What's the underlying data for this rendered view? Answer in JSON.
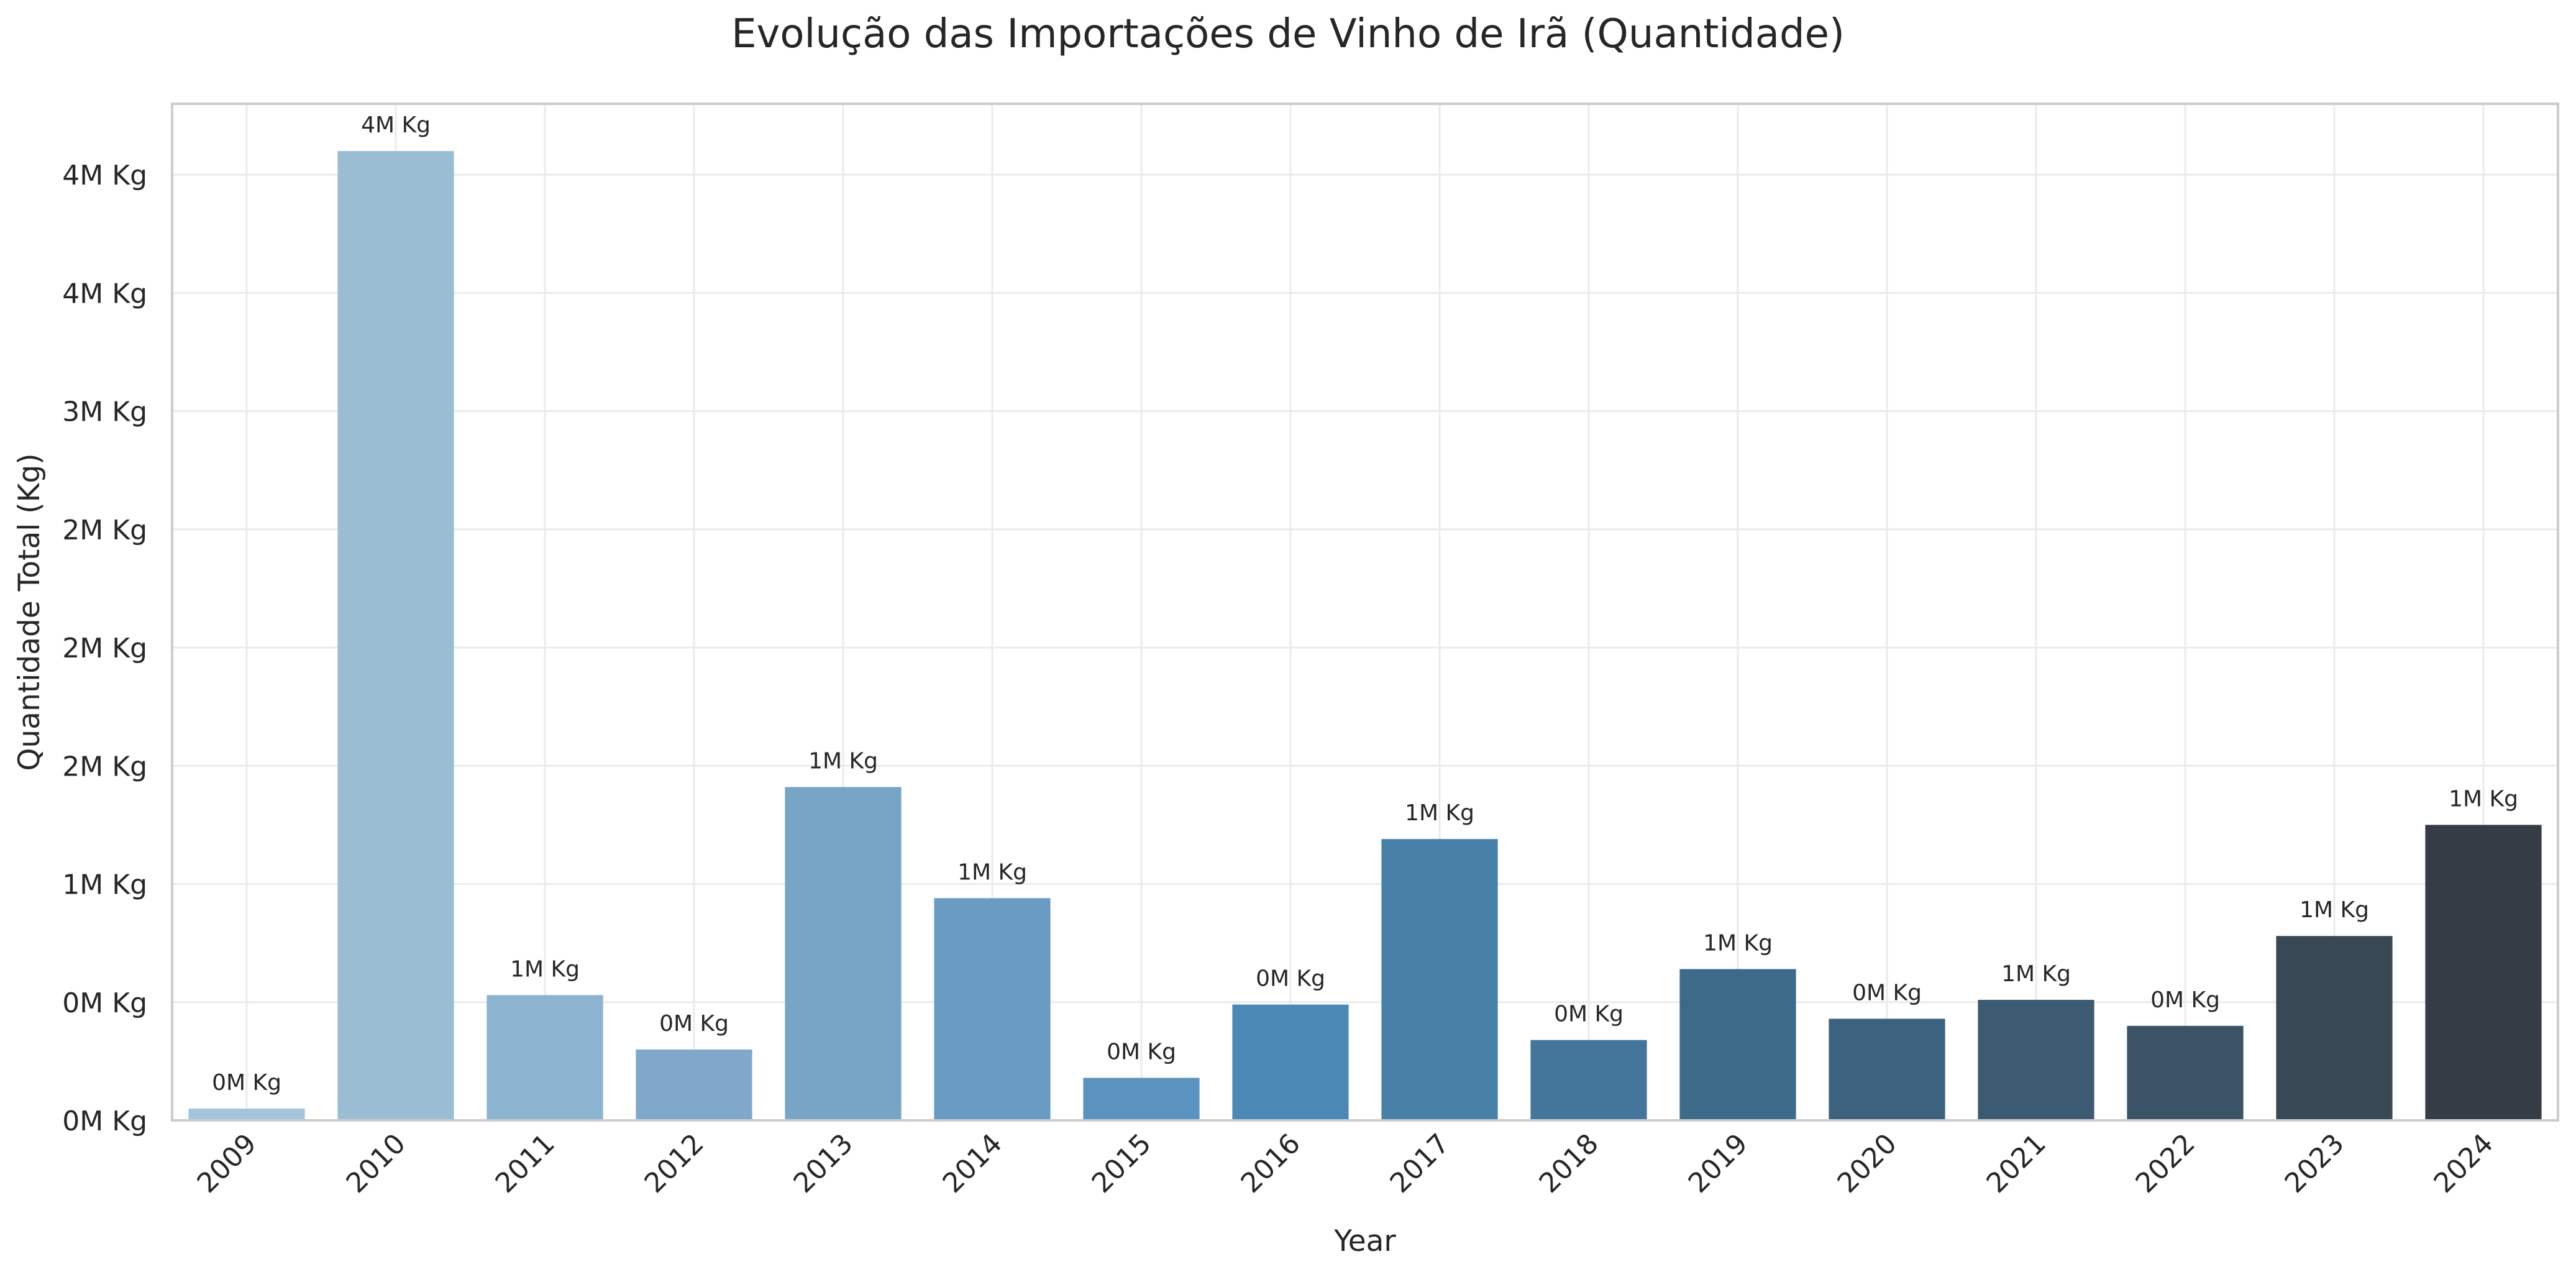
{
  "chart_data": {
    "type": "bar",
    "title": "Evolução das Importações de Vinho de Irã (Quantidade)",
    "xlabel": "Year",
    "ylabel": "Quantidade Total (Kg)",
    "categories": [
      "2009",
      "2010",
      "2011",
      "2012",
      "2013",
      "2014",
      "2015",
      "2016",
      "2017",
      "2018",
      "2019",
      "2020",
      "2021",
      "2022",
      "2023",
      "2024"
    ],
    "values": [
      50000,
      4100000,
      530000,
      300000,
      1410000,
      940000,
      180000,
      490000,
      1190000,
      340000,
      640000,
      430000,
      510000,
      400000,
      780000,
      1250000
    ],
    "data_labels": [
      "0M Kg",
      "4M Kg",
      "1M Kg",
      "0M Kg",
      "1M Kg",
      "1M Kg",
      "0M Kg",
      "0M Kg",
      "1M Kg",
      "0M Kg",
      "1M Kg",
      "0M Kg",
      "1M Kg",
      "0M Kg",
      "1M Kg",
      "1M Kg"
    ],
    "colors": [
      "#a3c4dc",
      "#9abdd4",
      "#8cb3d0",
      "#80a8cb",
      "#76a5c6",
      "#6a9bc3",
      "#5b93c0",
      "#4b88b5",
      "#4880a7",
      "#44769b",
      "#3e6a8a",
      "#3d627f",
      "#3d5a73",
      "#3b5366",
      "#384955",
      "#353c45"
    ],
    "ylim": [
      0,
      4300000
    ],
    "yticks": [
      0,
      500000,
      1000000,
      1500000,
      2000000,
      2500000,
      3000000,
      3500000,
      4000000
    ],
    "ytick_labels": [
      "0M Kg",
      "0M Kg",
      "1M Kg",
      "2M Kg",
      "2M Kg",
      "2M Kg",
      "3M Kg",
      "4M Kg",
      "4M Kg"
    ],
    "grid": true,
    "legend": "none"
  }
}
